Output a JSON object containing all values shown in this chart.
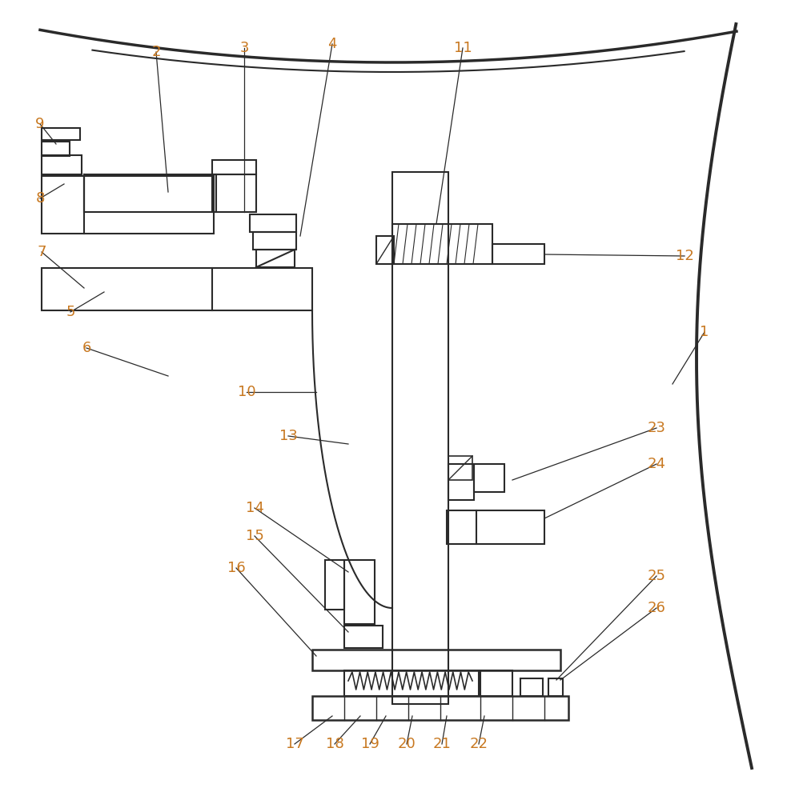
{
  "bg": "#ffffff",
  "lc": "#2a2a2a",
  "lbl": "#c87820",
  "fw": 9.98,
  "fh": 10.0
}
